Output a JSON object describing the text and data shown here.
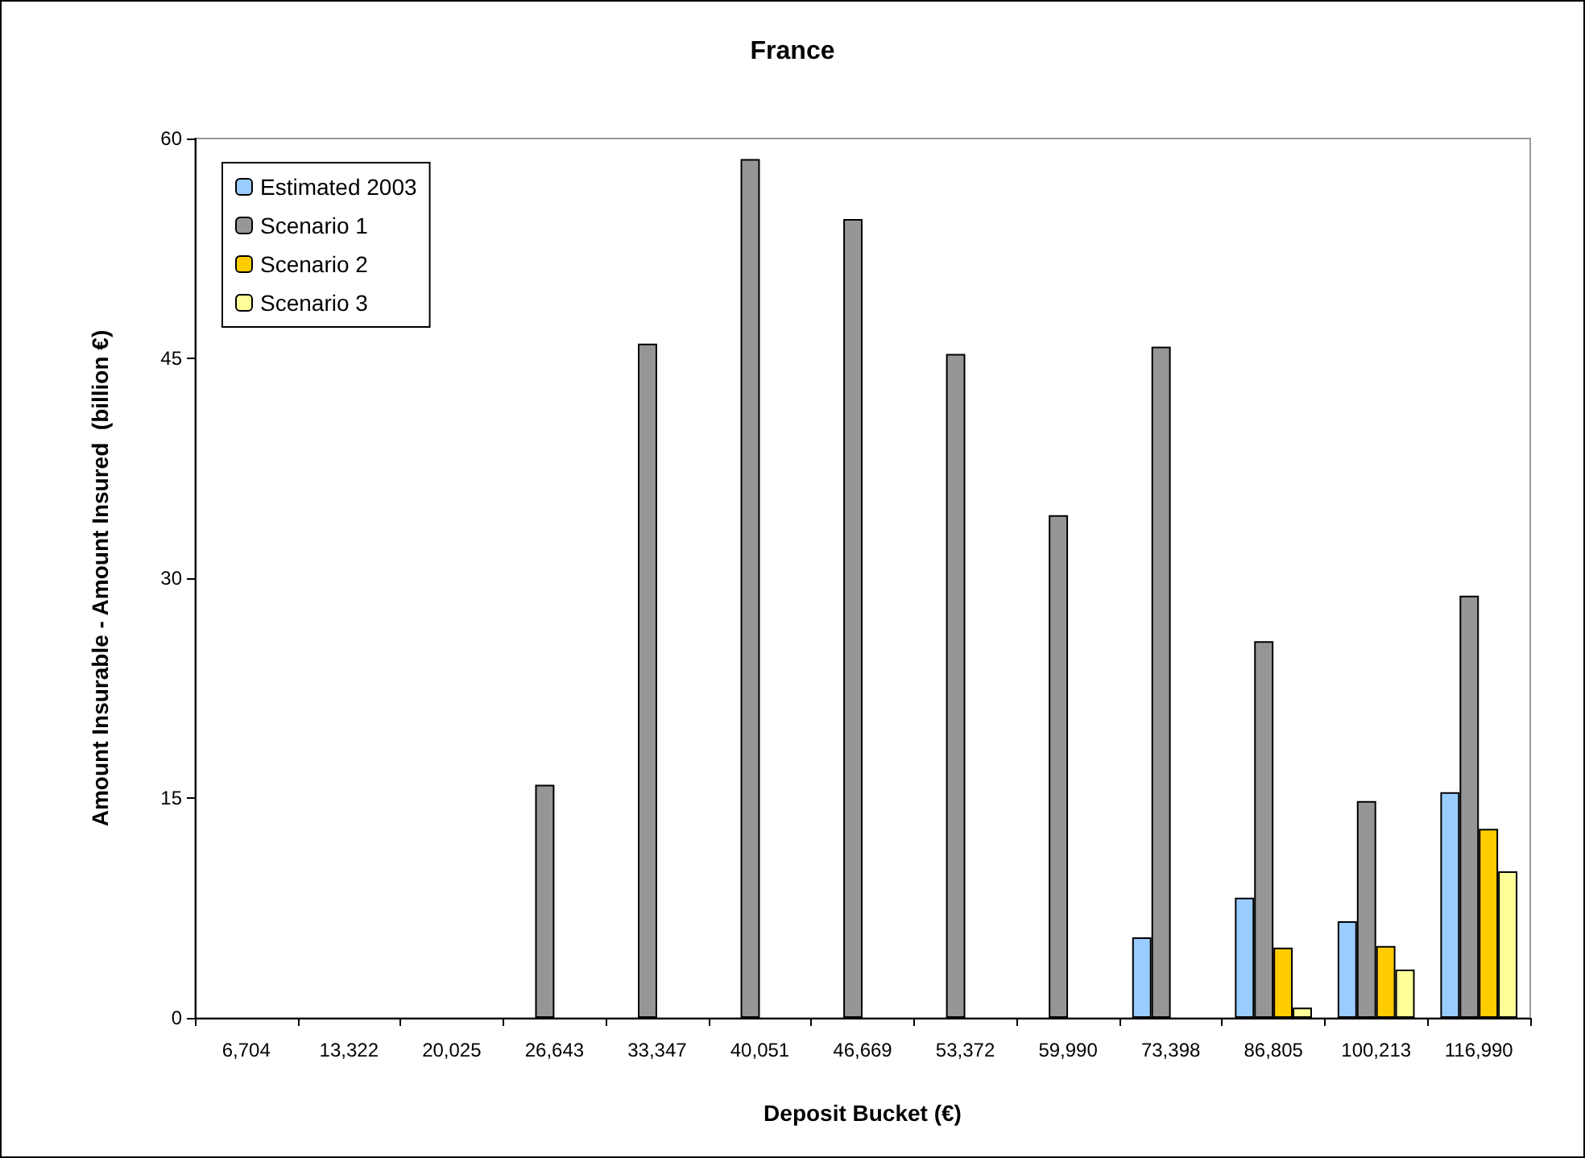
{
  "chart_data": {
    "type": "bar",
    "title": "France",
    "xlabel": "Deposit Bucket (€)",
    "ylabel": "Amount Insurable - Amount Insured  (billion €)",
    "categories": [
      "6,704",
      "13,322",
      "20,025",
      "26,643",
      "33,347",
      "40,051",
      "46,669",
      "53,372",
      "59,990",
      "73,398",
      "86,805",
      "100,213",
      "116,990"
    ],
    "series": [
      {
        "name": "Estimated 2003",
        "color": "#99ccff",
        "values": [
          null,
          null,
          null,
          null,
          null,
          null,
          null,
          null,
          null,
          5.5,
          8.2,
          6.6,
          15.4
        ]
      },
      {
        "name": "Scenario 1",
        "color": "#969696",
        "values": [
          null,
          null,
          null,
          15.9,
          46,
          58.6,
          54.5,
          45.3,
          34.3,
          45.8,
          25.7,
          14.8,
          28.8
        ]
      },
      {
        "name": "Scenario 2",
        "color": "#ffcc00",
        "values": [
          null,
          null,
          null,
          null,
          null,
          null,
          null,
          null,
          null,
          null,
          4.8,
          4.9,
          12.9
        ]
      },
      {
        "name": "Scenario 3",
        "color": "#ffff99",
        "values": [
          null,
          null,
          null,
          null,
          null,
          null,
          null,
          null,
          null,
          null,
          0.7,
          3.3,
          10.0
        ]
      }
    ],
    "ylim": [
      0,
      60
    ],
    "yticks": [
      0,
      15,
      30,
      45,
      60
    ],
    "grid": false,
    "legend": "top left"
  }
}
